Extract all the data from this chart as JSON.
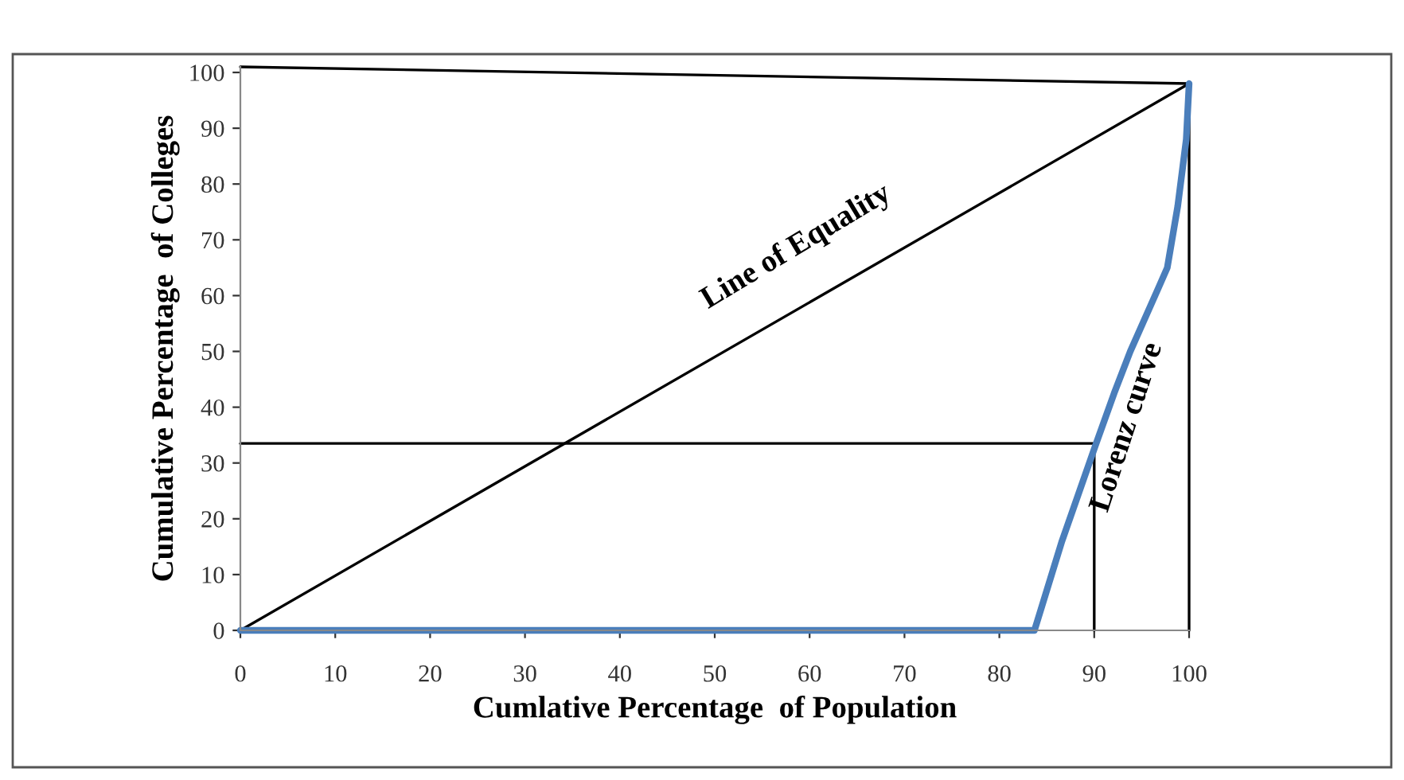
{
  "chart_data": {
    "type": "line",
    "xlabel": "Cumlative Percentage  of Population",
    "ylabel": "Cumulative Percentage  of Colleges",
    "xlim": [
      0,
      100
    ],
    "ylim": [
      0,
      101
    ],
    "xticks": [
      0,
      10,
      20,
      30,
      40,
      50,
      60,
      70,
      80,
      90,
      100
    ],
    "yticks": [
      0,
      10,
      20,
      30,
      40,
      50,
      60,
      70,
      80,
      90,
      100
    ],
    "grid": false,
    "legend": false,
    "marker": "none",
    "line_style": "solid",
    "series": [
      {
        "color": "#000000",
        "x": [
          0,
          100
        ],
        "values": [
          101,
          98
        ]
      },
      {
        "color": "#000000",
        "x": [
          0,
          100
        ],
        "values": [
          0,
          98
        ]
      },
      {
        "color": "#000000",
        "x": [
          0,
          90
        ],
        "values": [
          33.5,
          33.5
        ]
      },
      {
        "color": "#000000",
        "x": [
          90,
          90
        ],
        "values": [
          0,
          33.5
        ]
      },
      {
        "color": "#000000",
        "x": [
          100,
          100
        ],
        "values": [
          0,
          98
        ]
      },
      {
        "color": "#4a7ebb",
        "x": [
          0,
          82,
          83.7,
          86.6,
          90.1,
          92.1,
          93.8,
          96.8,
          97.7,
          98.8,
          99.7,
          100
        ],
        "values": [
          0,
          0,
          0,
          16,
          33,
          42.5,
          50,
          61.5,
          65,
          76,
          88,
          98
        ]
      }
    ],
    "annotations": [
      "Line of Equality",
      "Lorenz curve"
    ]
  }
}
